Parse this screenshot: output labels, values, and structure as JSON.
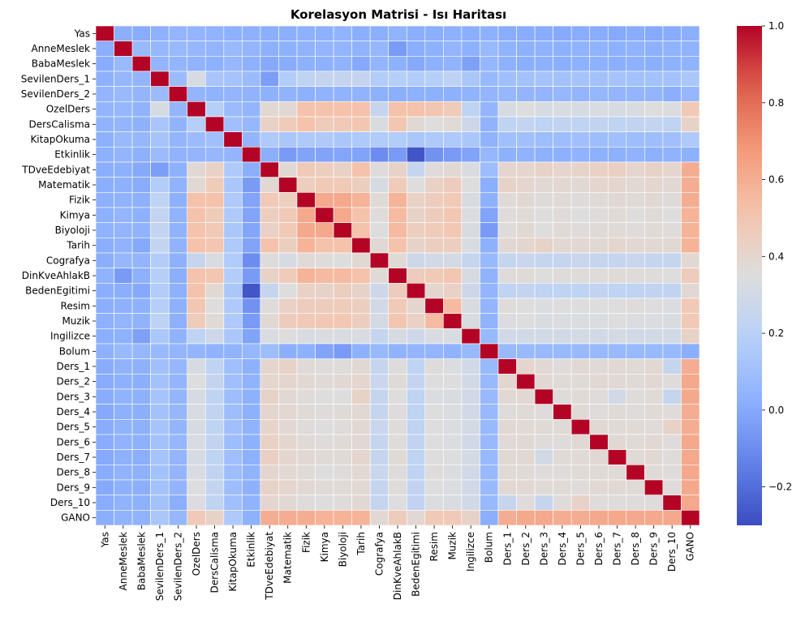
{
  "chart_data": {
    "type": "heatmap",
    "title": "Korelasyon Matrisi - Isı Haritası",
    "labels": [
      "Yas",
      "AnneMeslek",
      "BabaMeslek",
      "SevilenDers_1",
      "SevilenDers_2",
      "OzelDers",
      "DersCalisma",
      "KitapOkuma",
      "Etkinlik",
      "TDveEdebiyat",
      "Matematik",
      "Fizik",
      "Kimya",
      "Biyoloji",
      "Tarih",
      "Cografya",
      "DinKveAhlakB",
      "BedenEgitimi",
      "Resim",
      "Muzik",
      "Ingilizce",
      "Bolum",
      "Ders_1",
      "Ders_2",
      "Ders_3",
      "Ders_4",
      "Ders_5",
      "Ders_6",
      "Ders_7",
      "Ders_8",
      "Ders_9",
      "Ders_10",
      "GANO"
    ],
    "colormap": "coolwarm",
    "vmin": -0.3,
    "vmax": 1.0,
    "colorbar_ticks": [
      -0.2,
      0.0,
      0.2,
      0.4,
      0.6,
      0.8,
      1.0
    ],
    "colorbar_tick_labels": [
      "−0.2",
      "0.0",
      "0.2",
      "0.4",
      "0.6",
      "0.8",
      "1.0"
    ],
    "values": [
      [
        1.0,
        0.02,
        0.01,
        0.03,
        0.05,
        0.05,
        0.04,
        0.03,
        0.03,
        0.02,
        0.02,
        0.03,
        0.03,
        0.04,
        0.02,
        0.02,
        0.04,
        0.02,
        0.02,
        0.03,
        0.02,
        0.03,
        0.01,
        0.01,
        0.01,
        0.0,
        0.01,
        0.01,
        0.0,
        0.01,
        0.0,
        0.01,
        0.02
      ],
      [
        0.02,
        1.0,
        0.07,
        0.06,
        0.07,
        0.06,
        0.05,
        0.07,
        0.05,
        0.03,
        0.03,
        0.04,
        0.05,
        0.05,
        0.04,
        0.06,
        -0.05,
        0.02,
        0.03,
        0.05,
        0.03,
        0.07,
        0.04,
        0.03,
        0.04,
        0.03,
        0.04,
        0.04,
        0.03,
        0.04,
        0.03,
        0.04,
        0.04
      ],
      [
        0.01,
        0.07,
        1.0,
        0.05,
        0.05,
        0.04,
        0.03,
        0.06,
        0.03,
        0.0,
        0.01,
        0.03,
        0.03,
        0.04,
        0.0,
        0.05,
        0.03,
        0.0,
        0.03,
        0.04,
        -0.03,
        0.06,
        0.03,
        0.02,
        0.03,
        0.02,
        0.03,
        0.03,
        0.02,
        0.03,
        0.02,
        0.03,
        0.04
      ],
      [
        0.03,
        0.06,
        0.05,
        1.0,
        0.08,
        0.32,
        0.13,
        0.12,
        0.08,
        -0.04,
        0.17,
        0.22,
        0.24,
        0.24,
        0.24,
        0.17,
        0.18,
        0.17,
        0.18,
        0.21,
        0.14,
        0.07,
        0.1,
        0.11,
        0.12,
        0.11,
        0.12,
        0.11,
        0.12,
        0.11,
        0.11,
        0.11,
        0.14
      ],
      [
        0.05,
        0.07,
        0.05,
        0.08,
        1.0,
        0.05,
        0.04,
        0.05,
        0.04,
        0.03,
        0.04,
        0.03,
        0.04,
        0.04,
        0.04,
        0.03,
        0.02,
        0.03,
        0.03,
        0.03,
        0.04,
        0.05,
        0.06,
        0.05,
        0.05,
        0.06,
        0.05,
        0.06,
        0.05,
        0.05,
        0.05,
        0.02,
        0.06
      ],
      [
        0.05,
        0.06,
        0.04,
        0.32,
        0.05,
        1.0,
        0.18,
        0.08,
        0.05,
        0.38,
        0.38,
        0.52,
        0.52,
        0.52,
        0.52,
        0.25,
        0.52,
        0.52,
        0.5,
        0.47,
        0.22,
        0.05,
        0.32,
        0.35,
        0.32,
        0.33,
        0.32,
        0.33,
        0.32,
        0.33,
        0.35,
        0.34,
        0.48
      ],
      [
        0.04,
        0.05,
        0.03,
        0.13,
        0.04,
        0.18,
        1.0,
        0.1,
        0.06,
        0.43,
        0.47,
        0.52,
        0.47,
        0.48,
        0.5,
        0.33,
        0.5,
        0.38,
        0.35,
        0.37,
        0.28,
        0.04,
        0.22,
        0.24,
        0.22,
        0.23,
        0.22,
        0.23,
        0.22,
        0.23,
        0.24,
        0.22,
        0.42
      ],
      [
        0.03,
        0.07,
        0.06,
        0.12,
        0.05,
        0.08,
        0.1,
        1.0,
        0.05,
        0.15,
        0.14,
        0.15,
        0.15,
        0.14,
        0.15,
        0.16,
        0.17,
        0.14,
        0.15,
        0.15,
        0.14,
        0.04,
        0.1,
        0.1,
        0.09,
        0.09,
        0.1,
        0.09,
        0.1,
        0.09,
        0.09,
        0.1,
        0.15
      ],
      [
        0.03,
        0.05,
        0.03,
        0.08,
        0.04,
        0.05,
        0.06,
        0.05,
        1.0,
        0.02,
        -0.05,
        -0.02,
        -0.02,
        -0.01,
        -0.02,
        -0.1,
        -0.05,
        -0.27,
        -0.08,
        -0.05,
        -0.02,
        0.06,
        0.03,
        0.04,
        0.03,
        0.03,
        0.04,
        0.03,
        0.03,
        0.04,
        0.03,
        0.04,
        0.03
      ],
      [
        0.02,
        0.03,
        0.0,
        -0.04,
        0.03,
        0.38,
        0.43,
        0.15,
        0.02,
        1.0,
        0.38,
        0.48,
        0.45,
        0.43,
        0.52,
        0.36,
        0.42,
        0.25,
        0.36,
        0.38,
        0.33,
        0.09,
        0.4,
        0.4,
        0.42,
        0.4,
        0.41,
        0.43,
        0.44,
        0.4,
        0.42,
        0.4,
        0.6
      ],
      [
        0.02,
        0.03,
        0.01,
        0.17,
        0.04,
        0.38,
        0.47,
        0.14,
        -0.05,
        0.38,
        1.0,
        0.45,
        0.48,
        0.48,
        0.45,
        0.32,
        0.47,
        0.35,
        0.43,
        0.46,
        0.35,
        0.02,
        0.42,
        0.4,
        0.38,
        0.39,
        0.38,
        0.4,
        0.4,
        0.38,
        0.4,
        0.38,
        0.6
      ],
      [
        0.03,
        0.04,
        0.03,
        0.22,
        0.03,
        0.52,
        0.52,
        0.15,
        -0.02,
        0.48,
        0.45,
        1.0,
        0.62,
        0.62,
        0.58,
        0.37,
        0.58,
        0.43,
        0.46,
        0.48,
        0.33,
        0.03,
        0.37,
        0.38,
        0.36,
        0.37,
        0.36,
        0.37,
        0.38,
        0.37,
        0.38,
        0.36,
        0.6
      ],
      [
        0.03,
        0.05,
        0.03,
        0.24,
        0.04,
        0.52,
        0.47,
        0.15,
        -0.02,
        0.45,
        0.48,
        0.62,
        1.0,
        0.62,
        0.52,
        0.36,
        0.55,
        0.42,
        0.46,
        0.49,
        0.34,
        -0.02,
        0.36,
        0.37,
        0.35,
        0.36,
        0.35,
        0.36,
        0.37,
        0.35,
        0.37,
        0.35,
        0.58
      ],
      [
        0.04,
        0.05,
        0.04,
        0.24,
        0.04,
        0.52,
        0.48,
        0.14,
        -0.01,
        0.43,
        0.48,
        0.62,
        0.62,
        1.0,
        0.52,
        0.35,
        0.55,
        0.45,
        0.47,
        0.49,
        0.33,
        -0.05,
        0.36,
        0.38,
        0.35,
        0.37,
        0.36,
        0.37,
        0.37,
        0.36,
        0.37,
        0.36,
        0.58
      ],
      [
        0.02,
        0.04,
        0.0,
        0.24,
        0.04,
        0.52,
        0.5,
        0.15,
        -0.02,
        0.52,
        0.45,
        0.58,
        0.52,
        0.52,
        1.0,
        0.38,
        0.52,
        0.42,
        0.45,
        0.45,
        0.33,
        0.03,
        0.38,
        0.4,
        0.42,
        0.38,
        0.38,
        0.38,
        0.4,
        0.38,
        0.38,
        0.38,
        0.58
      ],
      [
        0.02,
        0.06,
        0.05,
        0.17,
        0.03,
        0.25,
        0.33,
        0.16,
        -0.1,
        0.36,
        0.32,
        0.37,
        0.36,
        0.35,
        0.38,
        1.0,
        0.37,
        0.28,
        0.3,
        0.31,
        0.25,
        0.07,
        0.25,
        0.26,
        0.25,
        0.25,
        0.26,
        0.25,
        0.25,
        0.26,
        0.25,
        0.25,
        0.38
      ],
      [
        0.04,
        -0.05,
        0.03,
        0.18,
        0.02,
        0.52,
        0.5,
        0.17,
        -0.05,
        0.42,
        0.47,
        0.58,
        0.55,
        0.55,
        0.52,
        0.37,
        1.0,
        0.46,
        0.48,
        0.5,
        0.32,
        0.04,
        0.36,
        0.37,
        0.35,
        0.36,
        0.36,
        0.36,
        0.37,
        0.36,
        0.36,
        0.35,
        0.46
      ],
      [
        0.02,
        0.02,
        0.0,
        0.17,
        0.03,
        0.52,
        0.38,
        0.14,
        -0.27,
        0.25,
        0.35,
        0.43,
        0.42,
        0.45,
        0.42,
        0.28,
        0.46,
        1.0,
        0.4,
        0.43,
        0.28,
        0.05,
        0.22,
        0.24,
        0.22,
        0.22,
        0.22,
        0.23,
        0.22,
        0.22,
        0.23,
        0.23,
        0.38
      ],
      [
        0.02,
        0.03,
        0.03,
        0.18,
        0.03,
        0.5,
        0.35,
        0.15,
        -0.08,
        0.36,
        0.43,
        0.46,
        0.46,
        0.47,
        0.45,
        0.3,
        0.48,
        0.4,
        1.0,
        0.55,
        0.33,
        0.05,
        0.36,
        0.35,
        0.34,
        0.35,
        0.35,
        0.35,
        0.35,
        0.36,
        0.35,
        0.34,
        0.48
      ],
      [
        0.03,
        0.05,
        0.04,
        0.21,
        0.03,
        0.47,
        0.37,
        0.15,
        -0.05,
        0.38,
        0.46,
        0.48,
        0.49,
        0.49,
        0.45,
        0.31,
        0.5,
        0.43,
        0.55,
        1.0,
        0.33,
        0.04,
        0.34,
        0.35,
        0.33,
        0.34,
        0.34,
        0.34,
        0.35,
        0.34,
        0.34,
        0.33,
        0.48
      ],
      [
        0.02,
        0.03,
        -0.03,
        0.14,
        0.04,
        0.22,
        0.28,
        0.14,
        -0.02,
        0.33,
        0.35,
        0.33,
        0.34,
        0.33,
        0.33,
        0.25,
        0.32,
        0.28,
        0.33,
        0.33,
        1.0,
        0.07,
        0.3,
        0.3,
        0.3,
        0.3,
        0.31,
        0.3,
        0.31,
        0.3,
        0.3,
        0.3,
        0.42
      ],
      [
        0.03,
        0.07,
        0.06,
        0.07,
        0.05,
        0.05,
        0.04,
        0.04,
        0.06,
        0.09,
        0.02,
        0.03,
        -0.02,
        -0.05,
        0.03,
        0.07,
        0.04,
        0.05,
        0.05,
        0.04,
        0.07,
        1.0,
        0.07,
        0.07,
        0.07,
        0.07,
        0.07,
        0.07,
        0.07,
        0.07,
        0.07,
        0.07,
        0.02
      ],
      [
        0.01,
        0.04,
        0.03,
        0.1,
        0.06,
        0.32,
        0.22,
        0.1,
        0.03,
        0.4,
        0.42,
        0.37,
        0.36,
        0.36,
        0.38,
        0.25,
        0.36,
        0.22,
        0.36,
        0.34,
        0.3,
        0.07,
        1.0,
        0.4,
        0.38,
        0.36,
        0.38,
        0.37,
        0.38,
        0.37,
        0.38,
        0.25,
        0.6
      ],
      [
        0.01,
        0.03,
        0.02,
        0.11,
        0.05,
        0.35,
        0.24,
        0.1,
        0.04,
        0.4,
        0.4,
        0.38,
        0.37,
        0.38,
        0.4,
        0.26,
        0.37,
        0.24,
        0.35,
        0.35,
        0.3,
        0.07,
        0.4,
        1.0,
        0.38,
        0.37,
        0.37,
        0.38,
        0.38,
        0.37,
        0.38,
        0.36,
        0.62
      ],
      [
        0.01,
        0.04,
        0.03,
        0.12,
        0.05,
        0.32,
        0.22,
        0.09,
        0.03,
        0.42,
        0.38,
        0.36,
        0.35,
        0.35,
        0.42,
        0.25,
        0.35,
        0.22,
        0.34,
        0.33,
        0.3,
        0.07,
        0.38,
        0.38,
        1.0,
        0.36,
        0.37,
        0.36,
        0.3,
        0.36,
        0.37,
        0.25,
        0.62
      ],
      [
        0.0,
        0.03,
        0.02,
        0.11,
        0.06,
        0.33,
        0.23,
        0.09,
        0.03,
        0.4,
        0.39,
        0.37,
        0.36,
        0.37,
        0.38,
        0.25,
        0.36,
        0.22,
        0.35,
        0.34,
        0.3,
        0.07,
        0.36,
        0.37,
        0.36,
        1.0,
        0.37,
        0.36,
        0.37,
        0.36,
        0.37,
        0.36,
        0.6
      ],
      [
        0.01,
        0.04,
        0.03,
        0.12,
        0.05,
        0.32,
        0.22,
        0.1,
        0.04,
        0.41,
        0.38,
        0.36,
        0.35,
        0.36,
        0.38,
        0.26,
        0.36,
        0.22,
        0.35,
        0.34,
        0.31,
        0.07,
        0.38,
        0.37,
        0.37,
        0.37,
        1.0,
        0.38,
        0.37,
        0.37,
        0.36,
        0.42,
        0.6
      ],
      [
        0.01,
        0.04,
        0.03,
        0.11,
        0.06,
        0.33,
        0.23,
        0.09,
        0.03,
        0.43,
        0.4,
        0.37,
        0.36,
        0.37,
        0.38,
        0.25,
        0.36,
        0.23,
        0.35,
        0.34,
        0.3,
        0.07,
        0.37,
        0.38,
        0.36,
        0.36,
        0.38,
        1.0,
        0.38,
        0.37,
        0.38,
        0.36,
        0.62
      ],
      [
        0.0,
        0.03,
        0.02,
        0.12,
        0.05,
        0.32,
        0.22,
        0.1,
        0.03,
        0.44,
        0.4,
        0.38,
        0.37,
        0.37,
        0.4,
        0.25,
        0.37,
        0.22,
        0.35,
        0.35,
        0.31,
        0.07,
        0.38,
        0.38,
        0.3,
        0.37,
        0.37,
        0.38,
        1.0,
        0.37,
        0.38,
        0.36,
        0.62
      ],
      [
        0.01,
        0.04,
        0.03,
        0.11,
        0.05,
        0.33,
        0.23,
        0.09,
        0.04,
        0.4,
        0.38,
        0.37,
        0.35,
        0.36,
        0.38,
        0.26,
        0.36,
        0.22,
        0.36,
        0.34,
        0.3,
        0.07,
        0.37,
        0.37,
        0.36,
        0.36,
        0.37,
        0.37,
        0.37,
        1.0,
        0.37,
        0.36,
        0.62
      ],
      [
        0.0,
        0.03,
        0.02,
        0.11,
        0.05,
        0.35,
        0.24,
        0.09,
        0.03,
        0.42,
        0.4,
        0.38,
        0.37,
        0.37,
        0.38,
        0.25,
        0.36,
        0.23,
        0.35,
        0.34,
        0.3,
        0.07,
        0.38,
        0.38,
        0.37,
        0.37,
        0.36,
        0.38,
        0.38,
        0.37,
        1.0,
        0.36,
        0.62
      ],
      [
        0.01,
        0.04,
        0.03,
        0.11,
        0.02,
        0.34,
        0.22,
        0.1,
        0.04,
        0.4,
        0.38,
        0.36,
        0.35,
        0.36,
        0.38,
        0.25,
        0.35,
        0.23,
        0.34,
        0.33,
        0.3,
        0.07,
        0.25,
        0.36,
        0.25,
        0.36,
        0.42,
        0.36,
        0.36,
        0.36,
        0.36,
        1.0,
        0.62
      ],
      [
        0.02,
        0.04,
        0.04,
        0.14,
        0.06,
        0.48,
        0.42,
        0.15,
        0.03,
        0.6,
        0.6,
        0.6,
        0.58,
        0.58,
        0.58,
        0.38,
        0.46,
        0.38,
        0.48,
        0.48,
        0.42,
        0.02,
        0.6,
        0.62,
        0.62,
        0.6,
        0.6,
        0.62,
        0.62,
        0.62,
        0.62,
        0.62,
        1.0
      ]
    ]
  }
}
